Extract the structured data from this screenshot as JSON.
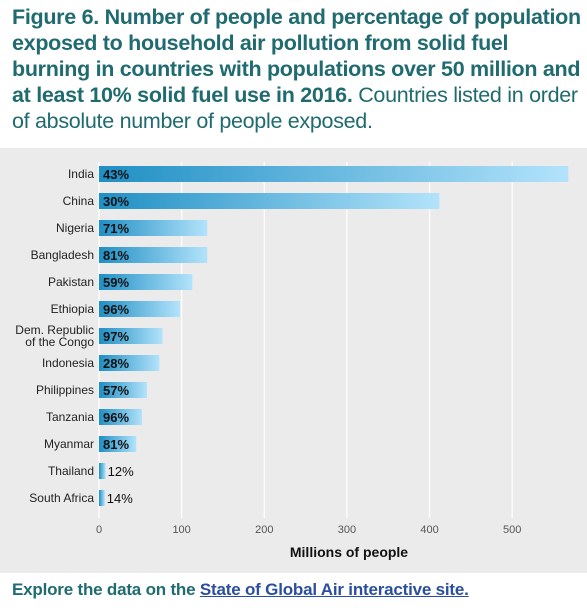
{
  "heading": {
    "bold": "Figure 6. Number of people and percentage of population exposed to household air pollution from solid fuel burning in countries with populations over 50 million and at least 10% solid fuel use in 2016.",
    "normal": " Countries listed in order of absolute number of people exposed."
  },
  "footer": {
    "prefix": "Explore the data on the ",
    "link": "State of Global Air interactive site."
  },
  "colors": {
    "bar_dark": "#1f8fc4",
    "bar_light": "#b3e3fb",
    "title": "#1f6b70",
    "link": "#2b4f9e",
    "panel": "#ebebeb"
  },
  "chart_data": {
    "type": "bar",
    "orientation": "horizontal",
    "title": "",
    "xlabel": "Millions of people",
    "ylabel": "",
    "xlim": [
      0,
      570
    ],
    "xticks": [
      0,
      100,
      200,
      300,
      400,
      500
    ],
    "grid": true,
    "categories": [
      "India",
      "China",
      "Nigeria",
      "Bangladesh",
      "Pakistan",
      "Ethiopia",
      "Dem. Republic of the Congo",
      "Indonesia",
      "Philippines",
      "Tanzania",
      "Myanmar",
      "Thailand",
      "South Africa"
    ],
    "category_lines": [
      [
        "India"
      ],
      [
        "China"
      ],
      [
        "Nigeria"
      ],
      [
        "Bangladesh"
      ],
      [
        "Pakistan"
      ],
      [
        "Ethiopia"
      ],
      [
        "Dem. Republic",
        "of the Congo"
      ],
      [
        "Indonesia"
      ],
      [
        "Philippines"
      ],
      [
        "Tanzania"
      ],
      [
        "Myanmar"
      ],
      [
        "Thailand"
      ],
      [
        "South Africa"
      ]
    ],
    "values": [
      568,
      412,
      131,
      131,
      113,
      98,
      77,
      73,
      58,
      52,
      45,
      8,
      7
    ],
    "labels": [
      "43%",
      "30%",
      "71%",
      "81%",
      "59%",
      "96%",
      "97%",
      "28%",
      "57%",
      "96%",
      "81%",
      "12%",
      "14%"
    ]
  }
}
